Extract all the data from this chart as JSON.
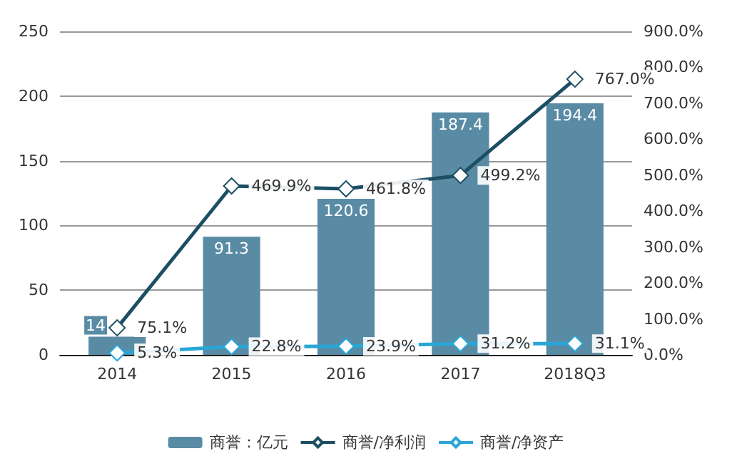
{
  "chart_data": {
    "type": "bar",
    "categories": [
      "2014",
      "2015",
      "2016",
      "2017",
      "2018Q3"
    ],
    "series": [
      {
        "name": "商誉：亿元",
        "color": "#5a8ba5",
        "values": [
          14,
          91.3,
          120.6,
          187.4,
          194.4
        ],
        "value_labels": [
          "14",
          "91.3",
          "120.6",
          "187.4",
          "194.4"
        ]
      },
      {
        "name": "商誉/净利润",
        "type": "line",
        "axis": "y2",
        "color": "#1c4f63",
        "values": [
          75.1,
          469.9,
          461.8,
          499.2,
          767.0
        ],
        "value_labels": [
          "75.1%",
          "469.9%",
          "461.8%",
          "499.2%",
          "767.0%"
        ]
      },
      {
        "name": "商誉/净资产",
        "type": "line",
        "axis": "y2",
        "color": "#2aa6d6",
        "values": [
          5.3,
          22.8,
          23.9,
          31.2,
          31.1
        ],
        "value_labels": [
          "5.3%",
          "22.8%",
          "23.9%",
          "31.2%",
          "31.1%"
        ]
      }
    ],
    "ylim": [
      0,
      250
    ],
    "yticks": [
      0,
      50,
      100,
      150,
      200,
      250
    ],
    "y2lim": [
      0,
      900
    ],
    "y2ticks": [
      {
        "value": 0,
        "label": "0.0%"
      },
      {
        "value": 100,
        "label": "100.0%"
      },
      {
        "value": 200,
        "label": "200.0%"
      },
      {
        "value": 300,
        "label": "300.0%"
      },
      {
        "value": 400,
        "label": "400.0%"
      },
      {
        "value": 500,
        "label": "500.0%"
      },
      {
        "value": 600,
        "label": "600.0%"
      },
      {
        "value": 700,
        "label": "700.0%"
      },
      {
        "value": 800,
        "label": "800.0%"
      },
      {
        "value": 900,
        "label": "900.0%"
      }
    ],
    "grid": "y",
    "legend": "bottom",
    "marker": "diamond",
    "line_style": "solid"
  }
}
